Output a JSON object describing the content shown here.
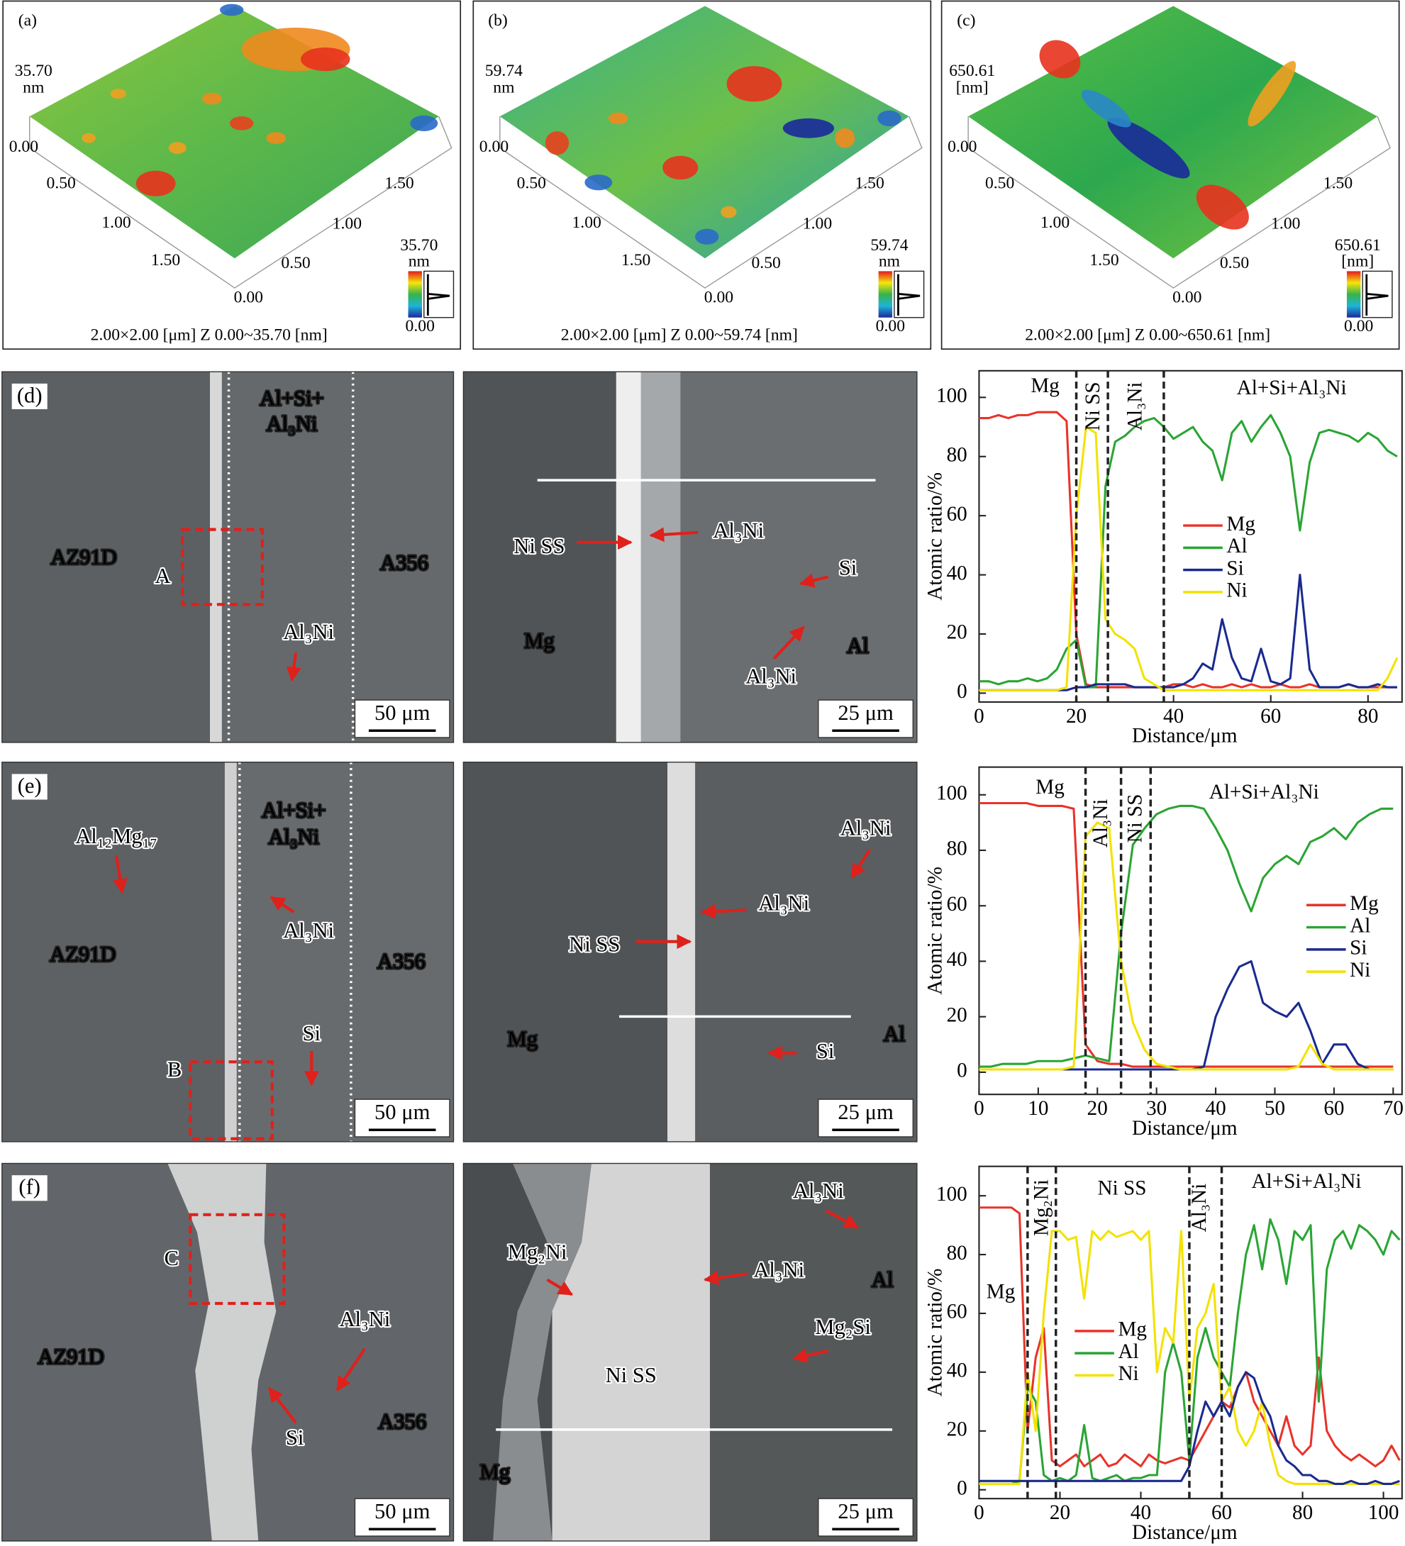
{
  "afm_panels": [
    {
      "label": "(a)",
      "z_max": "35.70",
      "z_unit": "nm",
      "z_min": "0.00",
      "left_ticks": [
        "0.50",
        "1.00",
        "1.50"
      ],
      "right_ticks": [
        "0.00",
        "0.50",
        "1.00",
        "1.50"
      ],
      "colorbar_max": "35.70",
      "colorbar_unit": "nm",
      "colorbar_min": "0.00",
      "caption": "2.00×2.00 [μm] Z 0.00~35.70 [nm]"
    },
    {
      "label": "(b)",
      "z_max": "59.74",
      "z_unit": "nm",
      "z_min": "0.00",
      "left_ticks": [
        "0.50",
        "1.00",
        "1.50"
      ],
      "right_ticks": [
        "0.00",
        "0.50",
        "1.00",
        "1.50"
      ],
      "colorbar_max": "59.74",
      "colorbar_unit": "nm",
      "colorbar_min": "0.00",
      "caption": "2.00×2.00 [μm] Z 0.00~59.74 [nm]"
    },
    {
      "label": "(c)",
      "z_max": "650.61",
      "z_unit": "[nm]",
      "z_min": "0.00",
      "left_ticks": [
        "0.50",
        "1.00",
        "1.50"
      ],
      "right_ticks": [
        "0.00",
        "0.50",
        "1.00",
        "1.50"
      ],
      "colorbar_max": "650.61",
      "colorbar_unit": "[nm]",
      "colorbar_min": "0.00",
      "caption": "2.00×2.00 [μm] Z 0.00~650.61 [nm]"
    }
  ],
  "sem_panels": [
    {
      "label": "(d)",
      "labels": [
        "Al+Si+",
        "Al₃Ni",
        "AZ91D",
        "A",
        "A356",
        "Al₃Ni"
      ],
      "scale_bar": "50 μm"
    },
    {
      "labels": [
        "Ni SS",
        "Al₃Ni",
        "Si",
        "Mg",
        "Al",
        "Al₃Ni"
      ],
      "scale_bar": "25 μm"
    },
    {
      "label": "(e)",
      "labels": [
        "Al+Si+",
        "Al₃Ni",
        "Al₁₂Mg₁₇",
        "Al₃Ni",
        "AZ91D",
        "A356",
        "Si",
        "B"
      ],
      "scale_bar": "50 μm"
    },
    {
      "labels": [
        "Al₃Ni",
        "Al₃Ni",
        "Ni SS",
        "Mg",
        "Al",
        "Si"
      ],
      "scale_bar": "25 μm"
    },
    {
      "label": "(f)",
      "labels": [
        "C",
        "Al₃Ni",
        "AZ91D",
        "A356",
        "Si"
      ],
      "scale_bar": "50 μm"
    },
    {
      "labels": [
        "Al₃Ni",
        "Mg₂Ni",
        "Al₃Ni",
        "Al",
        "Mg₂Si",
        "Ni SS",
        "Mg"
      ],
      "scale_bar": "25 μm"
    }
  ],
  "chart_data": [
    {
      "type": "line",
      "x_label": "Distance/μm",
      "y_label": "Atomic ratio/%",
      "xlim": [
        0,
        87
      ],
      "ylim": [
        -3,
        109
      ],
      "xticks": [
        0,
        20,
        40,
        60,
        80
      ],
      "yticks": [
        0,
        20,
        40,
        60,
        80,
        100
      ],
      "boundaries": [
        20,
        26.5,
        38
      ],
      "regions": [
        "Mg",
        "Ni SS",
        "Al₃Ni",
        "Al+Si+Al₃Ni"
      ],
      "x": [
        0,
        2,
        4,
        6,
        8,
        10,
        12,
        14,
        16,
        18,
        20,
        22,
        24,
        26,
        28,
        30,
        32,
        34,
        36,
        38,
        40,
        42,
        44,
        46,
        48,
        50,
        52,
        54,
        56,
        58,
        60,
        62,
        64,
        66,
        68,
        70,
        72,
        74,
        76,
        78,
        80,
        82,
        84,
        86
      ],
      "series": [
        {
          "name": "Mg",
          "color": "#e8332a",
          "values": [
            93,
            93,
            94,
            93,
            94,
            94,
            95,
            95,
            95,
            92,
            20,
            3,
            2,
            2,
            2,
            2,
            2,
            2,
            2,
            2,
            3,
            3,
            2,
            3,
            2,
            2,
            3,
            2,
            3,
            2,
            2,
            3,
            2,
            2,
            3,
            2,
            2,
            2,
            3,
            2,
            2,
            2,
            2,
            2
          ]
        },
        {
          "name": "Al",
          "color": "#2aa534",
          "values": [
            4,
            4,
            3,
            4,
            4,
            5,
            4,
            5,
            8,
            15,
            18,
            2,
            2,
            70,
            85,
            87,
            90,
            92,
            93,
            90,
            86,
            88,
            90,
            85,
            82,
            72,
            88,
            92,
            85,
            90,
            94,
            88,
            80,
            55,
            78,
            88,
            89,
            88,
            87,
            85,
            88,
            86,
            82,
            80
          ]
        },
        {
          "name": "Si",
          "color": "#1a2a8f",
          "values": [
            1,
            1,
            1,
            1,
            1,
            1,
            1,
            1,
            1,
            1,
            2,
            2,
            3,
            3,
            3,
            3,
            2,
            2,
            2,
            2,
            2,
            3,
            5,
            10,
            8,
            25,
            12,
            5,
            4,
            15,
            4,
            3,
            5,
            40,
            8,
            2,
            2,
            2,
            3,
            2,
            2,
            3,
            2,
            2
          ]
        },
        {
          "name": "Ni",
          "color": "#f2e200",
          "values": [
            1,
            1,
            1,
            1,
            1,
            1,
            1,
            1,
            1,
            2,
            60,
            90,
            88,
            25,
            20,
            18,
            15,
            5,
            3,
            1,
            1,
            1,
            1,
            1,
            1,
            1,
            1,
            1,
            1,
            1,
            1,
            1,
            1,
            1,
            1,
            1,
            1,
            1,
            1,
            1,
            1,
            1,
            5,
            12
          ]
        }
      ]
    },
    {
      "type": "line",
      "x_label": "Distance/μm",
      "y_label": "Atomic ratio/%",
      "xlim": [
        0,
        71.5
      ],
      "ylim": [
        -8,
        110
      ],
      "xticks": [
        0,
        10,
        20,
        30,
        40,
        50,
        60,
        70
      ],
      "yticks": [
        0,
        20,
        40,
        60,
        80,
        100
      ],
      "boundaries": [
        18,
        24,
        29
      ],
      "regions": [
        "Mg",
        "Al₃Ni",
        "Ni SS",
        "Al+Si+Al₃Ni"
      ],
      "x": [
        0,
        2,
        4,
        6,
        8,
        10,
        12,
        14,
        16,
        18,
        20,
        22,
        24,
        26,
        28,
        30,
        32,
        34,
        36,
        38,
        40,
        42,
        44,
        46,
        48,
        50,
        52,
        54,
        56,
        58,
        60,
        62,
        64,
        66,
        68,
        70
      ],
      "series": [
        {
          "name": "Mg",
          "color": "#e8332a",
          "values": [
            97,
            97,
            97,
            97,
            97,
            96,
            96,
            96,
            95,
            10,
            4,
            3,
            3,
            2,
            2,
            2,
            2,
            2,
            2,
            2,
            2,
            2,
            2,
            2,
            2,
            2,
            2,
            2,
            2,
            2,
            2,
            2,
            2,
            2,
            2,
            2
          ]
        },
        {
          "name": "Al",
          "color": "#2aa534",
          "values": [
            2,
            2,
            3,
            3,
            3,
            4,
            4,
            4,
            5,
            6,
            5,
            4,
            50,
            82,
            88,
            93,
            95,
            96,
            96,
            95,
            88,
            80,
            68,
            58,
            70,
            75,
            78,
            75,
            83,
            85,
            88,
            84,
            90,
            93,
            95,
            95
          ]
        },
        {
          "name": "Si",
          "color": "#1a2a8f",
          "values": [
            1,
            1,
            1,
            1,
            1,
            1,
            1,
            1,
            1,
            1,
            1,
            1,
            1,
            1,
            1,
            1,
            1,
            1,
            1,
            2,
            20,
            30,
            38,
            40,
            25,
            22,
            20,
            25,
            15,
            3,
            10,
            10,
            3,
            1,
            1,
            1
          ]
        },
        {
          "name": "Ni",
          "color": "#f2e200",
          "values": [
            1,
            1,
            1,
            1,
            1,
            1,
            1,
            1,
            2,
            85,
            90,
            88,
            40,
            18,
            8,
            3,
            2,
            1,
            1,
            1,
            1,
            1,
            1,
            1,
            1,
            1,
            1,
            2,
            10,
            3,
            1,
            1,
            1,
            1,
            1,
            1
          ]
        }
      ]
    },
    {
      "type": "line",
      "x_label": "Distance/μm",
      "y_label": "Atomic ratio/%",
      "xlim": [
        0,
        104.6
      ],
      "ylim": [
        -3,
        110
      ],
      "xticks": [
        0,
        20,
        40,
        60,
        80,
        100
      ],
      "yticks": [
        0,
        20,
        40,
        60,
        80,
        100
      ],
      "boundaries": [
        12,
        19,
        52,
        60
      ],
      "regions": [
        "Mg",
        "Mg₂Ni",
        "Ni SS",
        "Al₃Ni",
        "Al+Si+Al₃Ni"
      ],
      "x": [
        0,
        2,
        4,
        6,
        8,
        10,
        12,
        14,
        16,
        18,
        20,
        22,
        24,
        26,
        28,
        30,
        32,
        34,
        36,
        38,
        40,
        42,
        44,
        46,
        48,
        50,
        52,
        54,
        56,
        58,
        60,
        62,
        64,
        66,
        68,
        70,
        72,
        74,
        76,
        78,
        80,
        82,
        84,
        86,
        88,
        90,
        92,
        94,
        96,
        98,
        100,
        102,
        104
      ],
      "series": [
        {
          "name": "Mg",
          "color": "#e8332a",
          "values": [
            96,
            96,
            96,
            96,
            96,
            94,
            20,
            45,
            55,
            10,
            8,
            10,
            12,
            8,
            10,
            12,
            8,
            9,
            12,
            10,
            8,
            12,
            10,
            9,
            10,
            11,
            10,
            15,
            20,
            25,
            30,
            28,
            35,
            40,
            30,
            25,
            20,
            15,
            25,
            15,
            12,
            15,
            45,
            20,
            15,
            12,
            10,
            12,
            10,
            8,
            10,
            15,
            10
          ]
        },
        {
          "name": "Al",
          "color": "#2aa534",
          "values": [
            2,
            2,
            2,
            2,
            2,
            3,
            35,
            30,
            5,
            3,
            4,
            3,
            5,
            22,
            4,
            3,
            4,
            5,
            3,
            4,
            4,
            5,
            5,
            40,
            50,
            40,
            10,
            45,
            55,
            45,
            40,
            35,
            60,
            80,
            90,
            75,
            92,
            85,
            70,
            88,
            85,
            90,
            30,
            75,
            85,
            88,
            82,
            90,
            88,
            85,
            80,
            88,
            85
          ]
        },
        {
          "name": "Ni",
          "color": "#f2e200",
          "values": [
            2,
            2,
            2,
            2,
            2,
            2,
            40,
            20,
            60,
            88,
            88,
            85,
            86,
            65,
            88,
            85,
            88,
            86,
            87,
            88,
            85,
            88,
            40,
            55,
            50,
            88,
            30,
            55,
            60,
            70,
            30,
            35,
            20,
            15,
            20,
            30,
            15,
            5,
            3,
            2,
            2,
            2,
            2,
            2,
            2,
            2,
            2,
            2,
            2,
            2,
            2,
            2,
            2
          ]
        },
        {
          "color": "#1a2a8f",
          "values": [
            3,
            3,
            3,
            3,
            3,
            3,
            3,
            3,
            3,
            3,
            3,
            3,
            3,
            3,
            3,
            3,
            3,
            3,
            3,
            3,
            3,
            3,
            3,
            3,
            3,
            3,
            8,
            20,
            30,
            25,
            30,
            25,
            35,
            40,
            38,
            30,
            25,
            15,
            10,
            8,
            5,
            5,
            3,
            3,
            2,
            2,
            3,
            2,
            2,
            3,
            2,
            2,
            3
          ]
        }
      ]
    }
  ]
}
